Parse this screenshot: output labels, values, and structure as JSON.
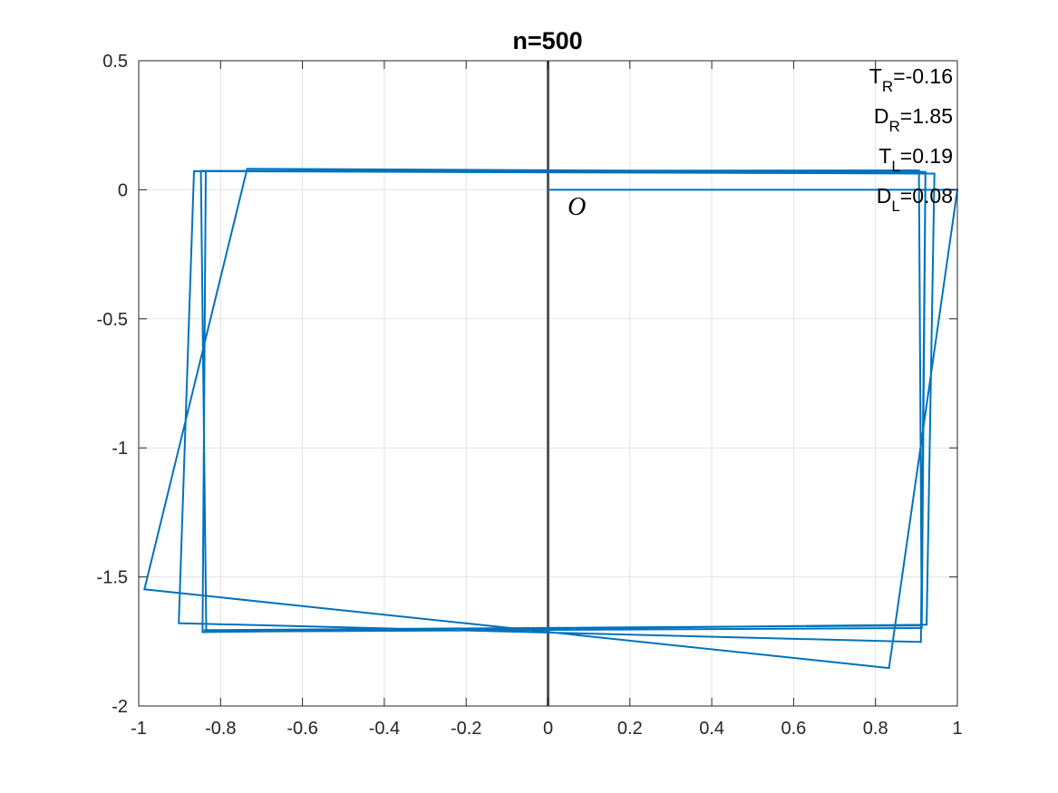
{
  "chart_data": {
    "type": "line",
    "title": "n=500",
    "xlabel": "",
    "ylabel": "",
    "xlim": [
      -1,
      1
    ],
    "ylim": [
      -2,
      0.5
    ],
    "xticks": [
      -1,
      -0.8,
      -0.6,
      -0.4,
      -0.2,
      0,
      0.2,
      0.4,
      0.6,
      0.8,
      1
    ],
    "yticks": [
      -2,
      -1.5,
      -1,
      -0.5,
      0,
      0.5
    ],
    "xtick_labels": [
      "-1",
      "-0.8",
      "-0.6",
      "-0.4",
      "-0.2",
      "0",
      "0.2",
      "0.4",
      "0.6",
      "0.8",
      "1"
    ],
    "ytick_labels": [
      "-2",
      "-1.5",
      "-1",
      "-0.5",
      "0",
      "0.5"
    ],
    "grid": true,
    "series_color": "#0072BD",
    "vertical_line": {
      "x": 0,
      "color": "#555555"
    },
    "origin_label": {
      "text": "O",
      "x": 0.07,
      "y": -0.04
    },
    "annotations": [
      {
        "base": "T",
        "sub": "R",
        "value": "=-0.16"
      },
      {
        "base": "D",
        "sub": "R",
        "value": "=1.85"
      },
      {
        "base": "T",
        "sub": "L",
        "value": "=0.19"
      },
      {
        "base": "D",
        "sub": "L",
        "value": "=0.08"
      }
    ],
    "series": [
      {
        "x": [
          0,
          1,
          0.833,
          -0.986,
          -0.735,
          0.922,
          0.911,
          -0.902,
          -0.865,
          0.944,
          0.925,
          -0.844,
          -0.836,
          0.922,
          0.913,
          -0.835,
          -0.848,
          0.906,
          0.913,
          -0.841
        ],
        "y": [
          0,
          0,
          -1.853,
          -1.548,
          0.081,
          0.069,
          -1.752,
          -1.679,
          0.072,
          0.063,
          -1.685,
          -1.714,
          0.073,
          0.066,
          -1.698,
          -1.712,
          0.073,
          0.075,
          -1.688,
          -1.706
        ]
      }
    ]
  }
}
